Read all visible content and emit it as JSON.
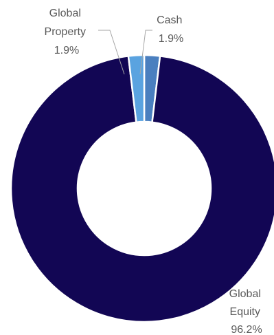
{
  "chart_data": {
    "type": "donut",
    "title": "",
    "legend": "none",
    "series": [
      {
        "name": "",
        "labels": [
          "Cash",
          "Global Equity",
          "Global Property"
        ],
        "values": [
          1.9,
          96.2,
          1.9
        ],
        "display_values": [
          "1.9%",
          "96.2%",
          "1.9%"
        ],
        "colors": [
          "#4a7fbf",
          "#120654",
          "#5aa3e0"
        ]
      }
    ],
    "start_angle_deg": 0,
    "direction": "clockwise",
    "hole_fraction": 0.5
  },
  "labels": {
    "cash": {
      "line1": "Cash",
      "line2": "1.9%"
    },
    "global_property": {
      "line1": "Global",
      "line2": "Property",
      "line3": "1.9%"
    },
    "global_equity": {
      "line1": "Global",
      "line2": "Equity",
      "line3": "96.2%"
    }
  }
}
